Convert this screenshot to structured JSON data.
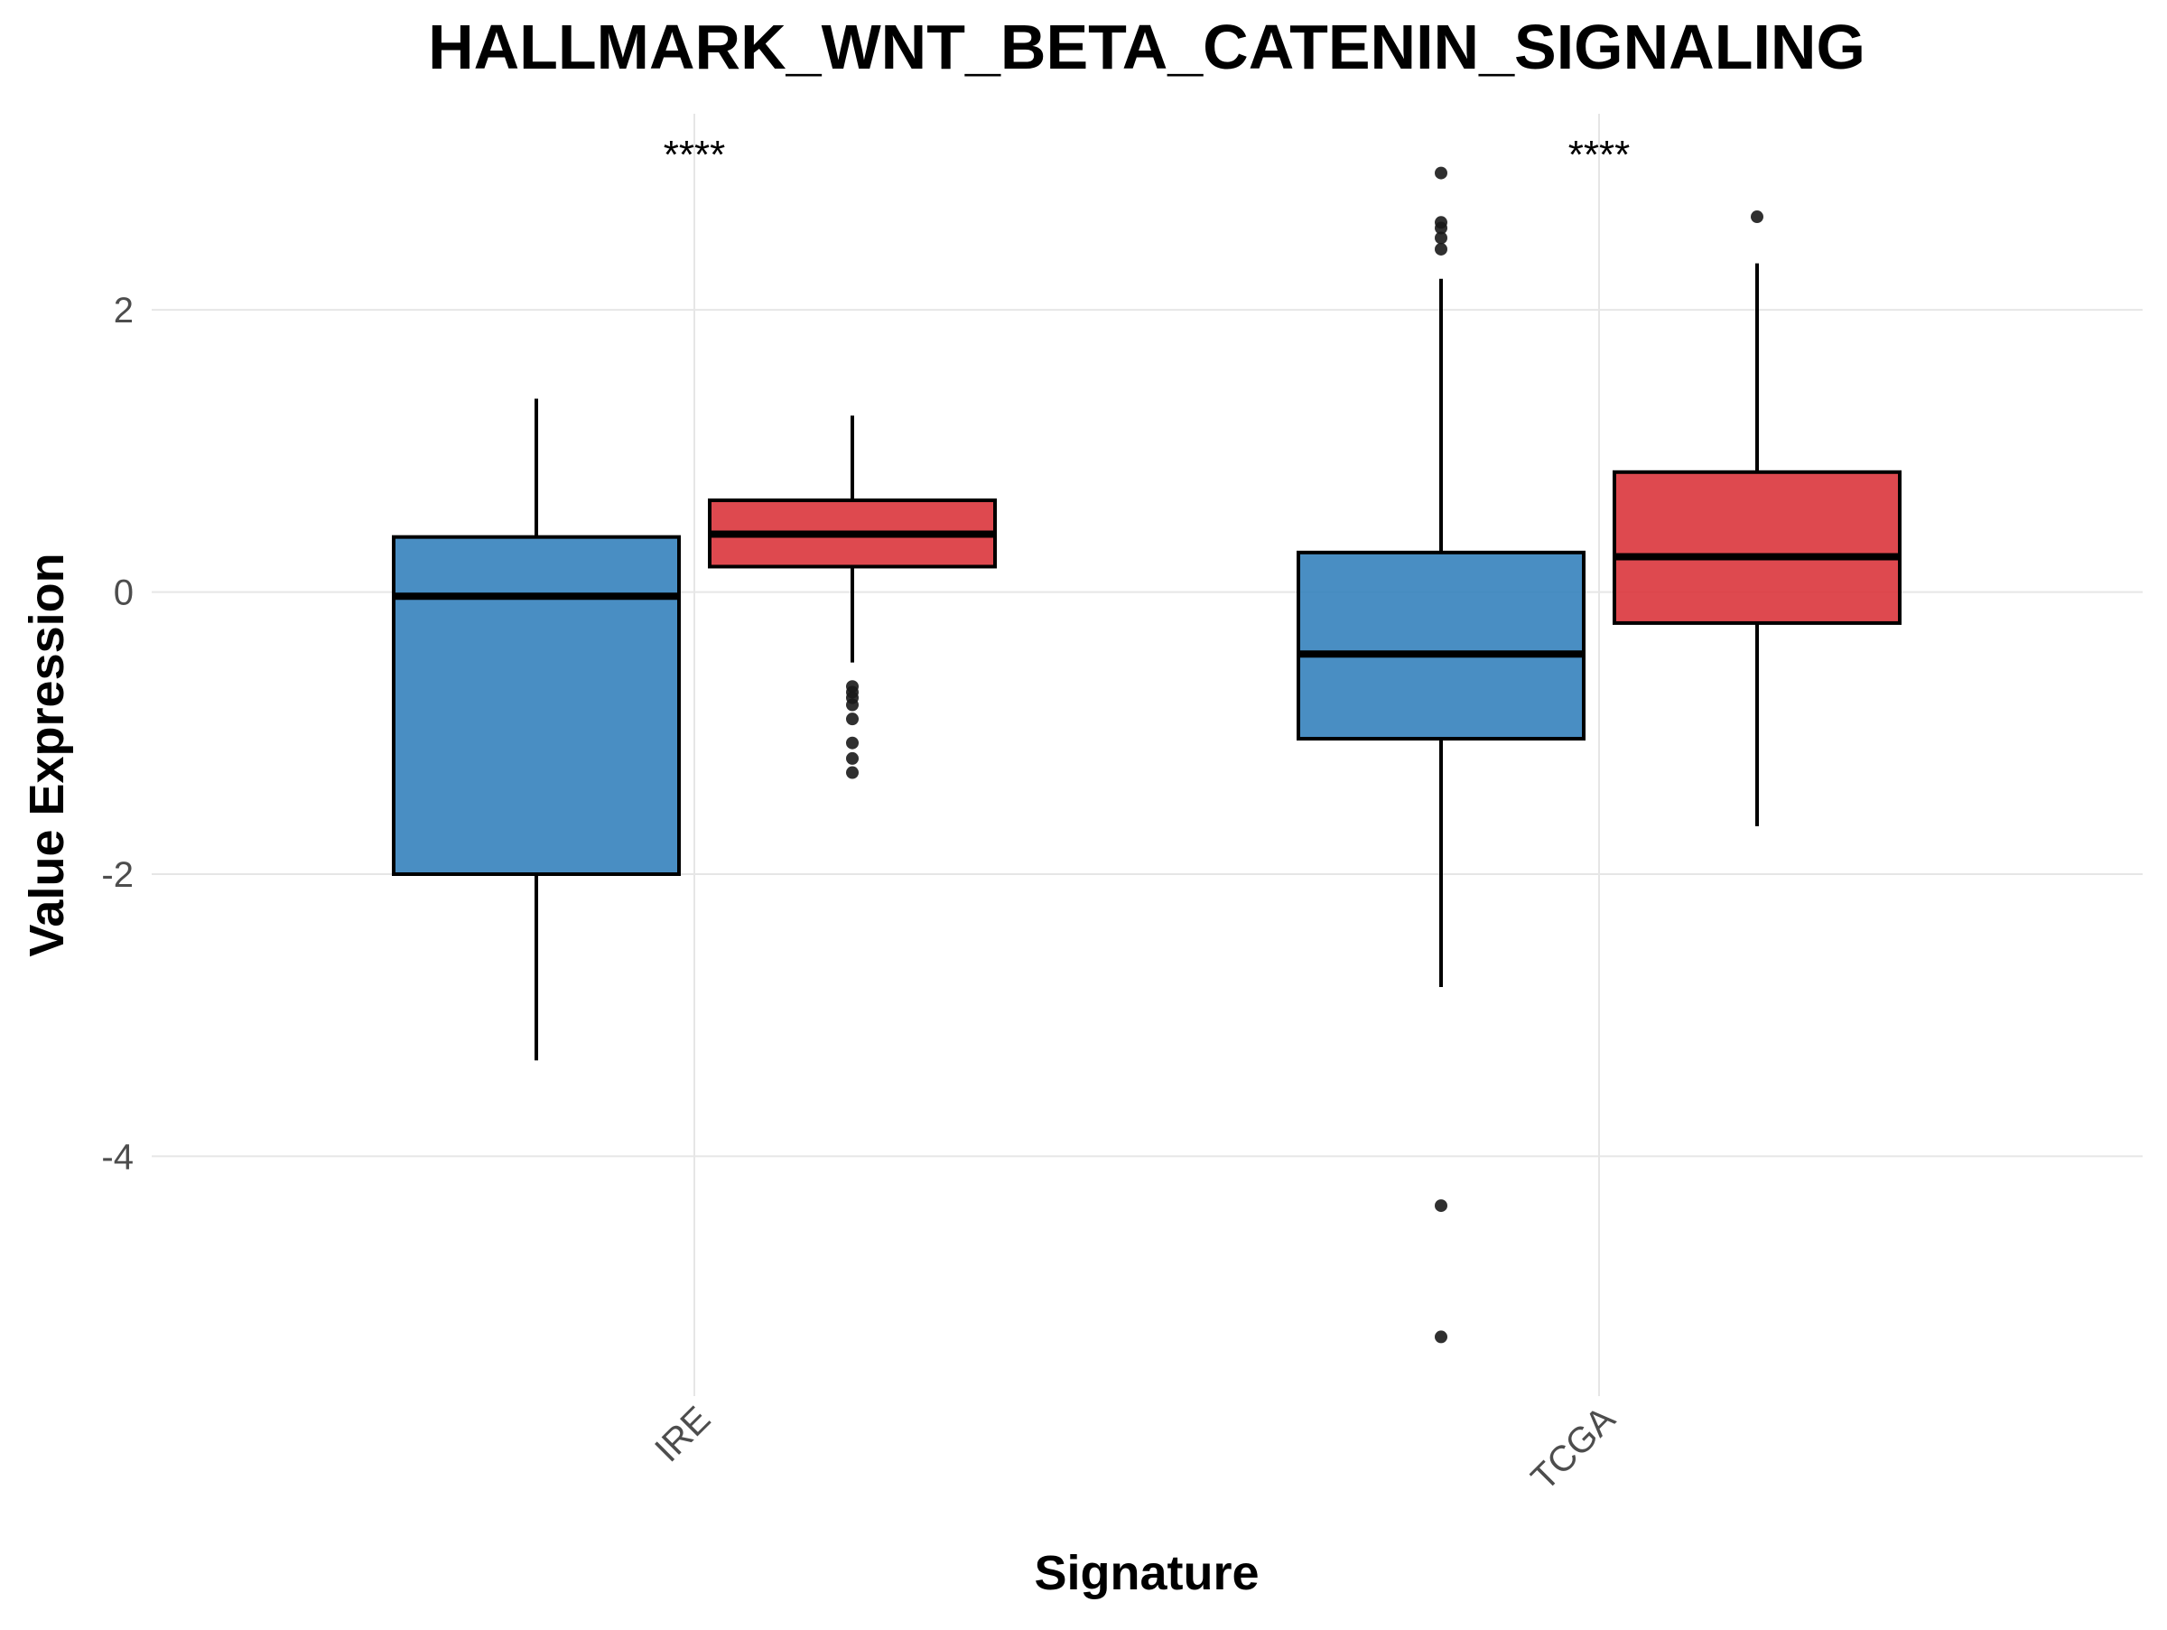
{
  "chart_data": {
    "type": "boxplot",
    "title": "HALLMARK_WNT_BETA_CATENIN_SIGNALING",
    "x_label": "Signature",
    "y_label": "Value Expression",
    "categories": [
      "IRE",
      "TCGA"
    ],
    "annotations": [
      "****",
      "****"
    ],
    "ylim": [
      -5.7,
      3.39
    ],
    "yticks": [
      -4,
      -2,
      0,
      2
    ],
    "grid": true,
    "series": [
      {
        "color": "#3a84be",
        "boxes": [
          {
            "whisker_low": -3.32,
            "q1": -2.0,
            "median": -0.03,
            "q3": 0.39,
            "whisker_high": 1.37,
            "outliers": []
          },
          {
            "whisker_low": -2.8,
            "q1": -1.04,
            "median": -0.44,
            "q3": 0.28,
            "whisker_high": 2.22,
            "outliers": [
              2.97,
              2.62,
              2.58,
              2.51,
              2.43,
              -4.35,
              -5.28
            ]
          }
        ]
      },
      {
        "color": "#db3a40",
        "boxes": [
          {
            "whisker_low": -0.5,
            "q1": 0.18,
            "median": 0.41,
            "q3": 0.65,
            "whisker_high": 1.25,
            "outliers": [
              -0.67,
              -0.71,
              -0.75,
              -0.8,
              -0.9,
              -1.07,
              -1.18,
              -1.28
            ]
          },
          {
            "whisker_low": -1.66,
            "q1": -0.22,
            "median": 0.25,
            "q3": 0.85,
            "whisker_high": 2.33,
            "outliers": [
              2.66
            ]
          }
        ]
      }
    ]
  }
}
